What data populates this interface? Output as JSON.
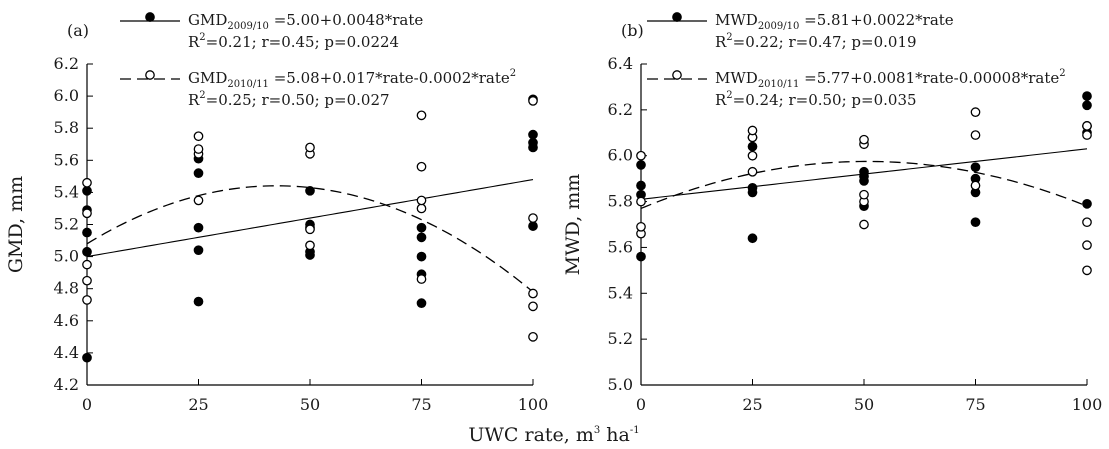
{
  "xlabel": "UWC rate, m",
  "xlabel_sup": "3",
  "xlabel_tail": " ha",
  "xlabel_tail_sup": "-1",
  "chart_data": [
    {
      "type": "scatter",
      "panel_label": "(a)",
      "ylabel": "GMD, mm",
      "xlim": [
        0,
        100
      ],
      "ylim": [
        4.2,
        6.2
      ],
      "xticks": [
        "0",
        "25",
        "50",
        "75",
        "100"
      ],
      "yticks": [
        "4.2",
        "4.4",
        "4.6",
        "4.8",
        "5.0",
        "5.2",
        "5.4",
        "5.6",
        "5.8",
        "6.0",
        "6.2"
      ],
      "legend": [
        {
          "series": "2009/10",
          "lead": "GMD",
          "sub": "2009/10",
          "eq": " =5.00+0.0048*rate",
          "eq_sup": "",
          "stats": "=0.21; r=0.45; p=0.0224"
        },
        {
          "series": "2010/11",
          "lead": "GMD",
          "sub": "2010/11",
          "eq": " =5.08+0.017*rate-0.0002*rate",
          "eq_sup": "2",
          "stats": "=0.25; r=0.50; p=0.027"
        }
      ],
      "series": [
        {
          "name": "2009/10",
          "marker": "filled-circle",
          "line": "solid",
          "fit": [
            5.0,
            0.0048,
            0
          ],
          "points": [
            [
              0,
              4.37
            ],
            [
              0,
              5.03
            ],
            [
              0,
              5.15
            ],
            [
              0,
              5.29
            ],
            [
              0,
              5.41
            ],
            [
              25,
              4.72
            ],
            [
              25,
              5.04
            ],
            [
              25,
              5.18
            ],
            [
              25,
              5.52
            ],
            [
              25,
              5.61
            ],
            [
              50,
              5.01
            ],
            [
              50,
              5.03
            ],
            [
              50,
              5.18
            ],
            [
              50,
              5.2
            ],
            [
              50,
              5.41
            ],
            [
              75,
              4.71
            ],
            [
              75,
              4.89
            ],
            [
              75,
              5.0
            ],
            [
              75,
              5.12
            ],
            [
              75,
              5.18
            ],
            [
              100,
              5.19
            ],
            [
              100,
              5.68
            ],
            [
              100,
              5.71
            ],
            [
              100,
              5.76
            ],
            [
              100,
              5.98
            ]
          ]
        },
        {
          "name": "2010/11",
          "marker": "open-circle",
          "line": "dashed",
          "fit": [
            5.08,
            0.017,
            -0.0002
          ],
          "points": [
            [
              0,
              4.73
            ],
            [
              0,
              4.85
            ],
            [
              0,
              4.95
            ],
            [
              0,
              5.27
            ],
            [
              0,
              5.46
            ],
            [
              25,
              5.35
            ],
            [
              25,
              5.64
            ],
            [
              25,
              5.67
            ],
            [
              25,
              5.75
            ],
            [
              50,
              5.07
            ],
            [
              50,
              5.17
            ],
            [
              50,
              5.64
            ],
            [
              50,
              5.68
            ],
            [
              75,
              4.86
            ],
            [
              75,
              5.3
            ],
            [
              75,
              5.35
            ],
            [
              75,
              5.56
            ],
            [
              75,
              5.88
            ],
            [
              100,
              4.5
            ],
            [
              100,
              4.69
            ],
            [
              100,
              4.77
            ],
            [
              100,
              5.24
            ],
            [
              100,
              5.97
            ]
          ]
        }
      ]
    },
    {
      "type": "scatter",
      "panel_label": "(b)",
      "ylabel": "MWD, mm",
      "xlim": [
        0,
        100
      ],
      "ylim": [
        5.0,
        6.4
      ],
      "xticks": [
        "0",
        "25",
        "50",
        "75",
        "100"
      ],
      "yticks": [
        "5.0",
        "5.2",
        "5.4",
        "5.6",
        "5.8",
        "6.0",
        "6.2",
        "6.4"
      ],
      "legend": [
        {
          "series": "2009/10",
          "lead": "MWD",
          "sub": "2009/10",
          "eq": " =5.81+0.0022*rate",
          "eq_sup": "",
          "stats": "=0.22; r=0.47; p=0.019"
        },
        {
          "series": "2010/11",
          "lead": "MWD",
          "sub": "2010/11",
          "eq": " =5.77+0.0081*rate-0.00008*rate",
          "eq_sup": "2",
          "stats": "=0.24; r=0.50; p=0.035"
        }
      ],
      "series": [
        {
          "name": "2009/10",
          "marker": "filled-circle",
          "line": "solid",
          "fit": [
            5.81,
            0.0022,
            0
          ],
          "points": [
            [
              0,
              5.56
            ],
            [
              0,
              5.83
            ],
            [
              0,
              5.87
            ],
            [
              0,
              5.96
            ],
            [
              25,
              5.64
            ],
            [
              25,
              5.84
            ],
            [
              25,
              5.86
            ],
            [
              25,
              6.04
            ],
            [
              25,
              6.08
            ],
            [
              50,
              5.78
            ],
            [
              50,
              5.89
            ],
            [
              50,
              5.91
            ],
            [
              50,
              5.93
            ],
            [
              75,
              5.71
            ],
            [
              75,
              5.84
            ],
            [
              75,
              5.9
            ],
            [
              75,
              5.95
            ],
            [
              100,
              5.79
            ],
            [
              100,
              6.1
            ],
            [
              100,
              6.13
            ],
            [
              100,
              6.22
            ],
            [
              100,
              6.26
            ]
          ]
        },
        {
          "name": "2010/11",
          "marker": "open-circle",
          "line": "dashed",
          "fit": [
            5.77,
            0.0081,
            -8e-05
          ],
          "points": [
            [
              0,
              5.66
            ],
            [
              0,
              5.69
            ],
            [
              0,
              5.8
            ],
            [
              0,
              6.0
            ],
            [
              25,
              5.93
            ],
            [
              25,
              6.0
            ],
            [
              25,
              6.08
            ],
            [
              25,
              6.11
            ],
            [
              50,
              5.7
            ],
            [
              50,
              5.8
            ],
            [
              50,
              5.83
            ],
            [
              50,
              6.05
            ],
            [
              50,
              6.07
            ],
            [
              75,
              5.87
            ],
            [
              75,
              6.09
            ],
            [
              75,
              6.19
            ],
            [
              100,
              5.5
            ],
            [
              100,
              5.61
            ],
            [
              100,
              5.71
            ],
            [
              100,
              6.09
            ],
            [
              100,
              6.13
            ]
          ]
        }
      ]
    }
  ]
}
